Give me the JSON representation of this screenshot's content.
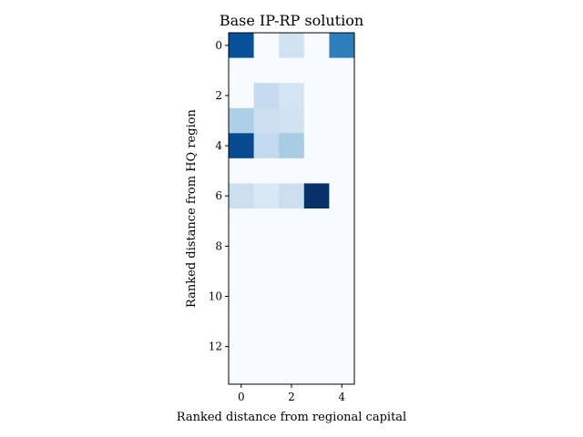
{
  "chart_data": {
    "type": "heatmap",
    "title": "Base IP-RP solution",
    "xlabel": "Ranked distance from regional capital",
    "ylabel": "Ranked distance from HQ region",
    "colormap": "Blues",
    "x_ticks": [
      0,
      2,
      4
    ],
    "y_ticks": [
      0,
      2,
      4,
      6,
      8,
      10,
      12
    ],
    "n_cols": 5,
    "n_rows": 14,
    "value_range": [
      0,
      1
    ],
    "values": [
      [
        0.88,
        0.0,
        0.2,
        0.0,
        0.7
      ],
      [
        0.0,
        0.0,
        0.0,
        0.0,
        0.0
      ],
      [
        0.0,
        0.25,
        0.18,
        0.0,
        0.0
      ],
      [
        0.33,
        0.22,
        0.2,
        0.0,
        0.0
      ],
      [
        0.9,
        0.26,
        0.35,
        0.0,
        0.0
      ],
      [
        0.0,
        0.0,
        0.0,
        0.0,
        0.0
      ],
      [
        0.22,
        0.15,
        0.22,
        1.0,
        0.0
      ],
      [
        0.0,
        0.0,
        0.0,
        0.0,
        0.0
      ],
      [
        0.0,
        0.0,
        0.0,
        0.0,
        0.0
      ],
      [
        0.0,
        0.0,
        0.0,
        0.0,
        0.0
      ],
      [
        0.0,
        0.0,
        0.0,
        0.0,
        0.0
      ],
      [
        0.0,
        0.0,
        0.0,
        0.0,
        0.0
      ],
      [
        0.0,
        0.0,
        0.0,
        0.0,
        0.0
      ],
      [
        0.0,
        0.0,
        0.0,
        0.0,
        0.0
      ]
    ]
  }
}
